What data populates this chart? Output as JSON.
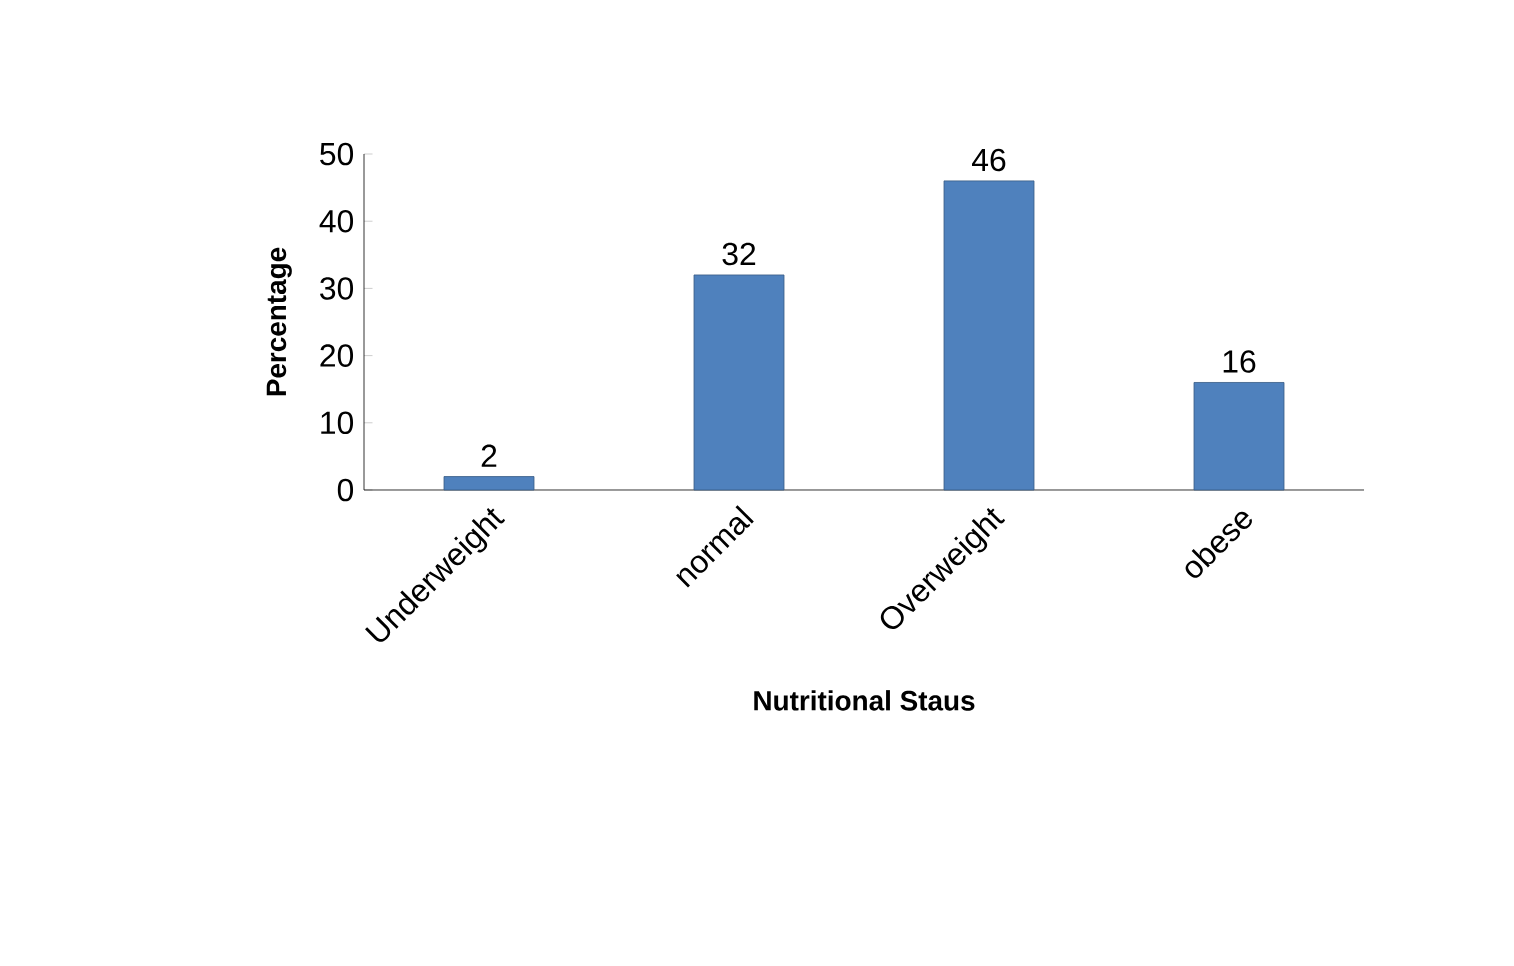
{
  "chart_data": {
    "type": "bar",
    "xlabel": "Nutritional Staus",
    "ylabel": "Percentage",
    "categories": [
      "Underweight",
      "normal",
      "Overweight",
      "obese"
    ],
    "values": [
      2,
      32,
      46,
      16
    ],
    "color": "#4f81bd",
    "data_labels": true,
    "ylim": [
      0,
      50
    ],
    "yticks": [
      0,
      10,
      20,
      30,
      40,
      50
    ],
    "grid": false
  }
}
